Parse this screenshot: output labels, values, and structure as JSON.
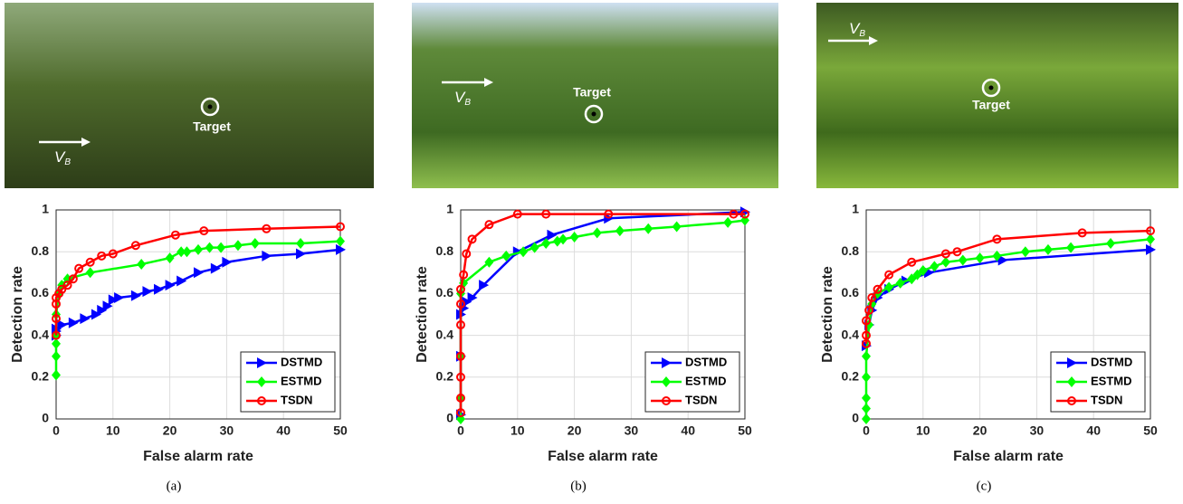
{
  "chart_data": [
    {
      "type": "line",
      "caption": "(a)",
      "photo": {
        "target_label": "Target",
        "velocity_label": "V",
        "velocity_subscript": "B"
      },
      "xlabel": "False alarm rate",
      "ylabel": "Detection rate",
      "xlim": [
        0,
        50
      ],
      "xticks": [
        0,
        10,
        20,
        30,
        40,
        50
      ],
      "ylim": [
        0,
        1
      ],
      "yticks": [
        0,
        0.2,
        0.4,
        0.6,
        0.8,
        1
      ],
      "grid": true,
      "legend": "lower right",
      "series": [
        {
          "name": "DSTMD",
          "color": "#0000ff",
          "marker": "triangle",
          "x": [
            0,
            0,
            0,
            1,
            3,
            5,
            7,
            8,
            9,
            10,
            11,
            14,
            16,
            18,
            20,
            22,
            25,
            28,
            30,
            37,
            43,
            50
          ],
          "values": [
            0.4,
            0.42,
            0.43,
            0.45,
            0.46,
            0.48,
            0.5,
            0.52,
            0.54,
            0.57,
            0.58,
            0.59,
            0.61,
            0.62,
            0.64,
            0.66,
            0.7,
            0.72,
            0.75,
            0.78,
            0.79,
            0.81
          ]
        },
        {
          "name": "ESTMD",
          "color": "#00ff00",
          "marker": "diamond",
          "x": [
            0,
            0,
            0,
            0,
            0,
            0.5,
            1,
            2,
            6,
            15,
            20,
            22,
            23,
            25,
            27,
            29,
            32,
            35,
            43,
            50
          ],
          "values": [
            0.21,
            0.3,
            0.36,
            0.4,
            0.5,
            0.6,
            0.64,
            0.67,
            0.7,
            0.74,
            0.77,
            0.8,
            0.8,
            0.81,
            0.82,
            0.82,
            0.83,
            0.84,
            0.84,
            0.85
          ]
        },
        {
          "name": "TSDN",
          "color": "#ff0000",
          "marker": "circle",
          "x": [
            0,
            0,
            0,
            0,
            0.5,
            1,
            2,
            3,
            4,
            6,
            8,
            10,
            14,
            21,
            26,
            37,
            50
          ],
          "values": [
            0.4,
            0.48,
            0.55,
            0.58,
            0.6,
            0.62,
            0.64,
            0.67,
            0.72,
            0.75,
            0.78,
            0.79,
            0.83,
            0.88,
            0.9,
            0.91,
            0.92
          ]
        }
      ]
    },
    {
      "type": "line",
      "caption": "(b)",
      "photo": {
        "target_label": "Target",
        "velocity_label": "V",
        "velocity_subscript": "B"
      },
      "xlabel": "False alarm rate",
      "ylabel": "Detection rate",
      "xlim": [
        0,
        50
      ],
      "xticks": [
        0,
        10,
        20,
        30,
        40,
        50
      ],
      "ylim": [
        0,
        1
      ],
      "yticks": [
        0,
        0.2,
        0.4,
        0.6,
        0.8,
        1
      ],
      "grid": true,
      "legend": "lower right",
      "series": [
        {
          "name": "DSTMD",
          "color": "#0000ff",
          "marker": "triangle",
          "x": [
            0,
            0,
            0,
            0.5,
            1,
            2,
            4,
            10,
            16,
            26,
            50
          ],
          "values": [
            0.02,
            0.3,
            0.5,
            0.53,
            0.56,
            0.58,
            0.64,
            0.8,
            0.88,
            0.96,
            0.99
          ]
        },
        {
          "name": "ESTMD",
          "color": "#00ff00",
          "marker": "diamond",
          "x": [
            0,
            0,
            0,
            0,
            0.5,
            5,
            8,
            11,
            13,
            15,
            17,
            18,
            20,
            24,
            28,
            33,
            38,
            47,
            50
          ],
          "values": [
            0,
            0.1,
            0.3,
            0.6,
            0.65,
            0.75,
            0.78,
            0.8,
            0.82,
            0.84,
            0.85,
            0.86,
            0.87,
            0.89,
            0.9,
            0.91,
            0.92,
            0.94,
            0.95
          ]
        },
        {
          "name": "TSDN",
          "color": "#ff0000",
          "marker": "circle",
          "x": [
            0,
            0,
            0,
            0,
            0,
            0,
            0,
            0.5,
            1,
            2,
            5,
            10,
            15,
            26,
            48,
            50
          ],
          "values": [
            0.03,
            0.1,
            0.2,
            0.3,
            0.45,
            0.55,
            0.62,
            0.69,
            0.79,
            0.86,
            0.93,
            0.98,
            0.98,
            0.98,
            0.98,
            0.98
          ]
        }
      ]
    },
    {
      "type": "line",
      "caption": "(c)",
      "photo": {
        "target_label": "Target",
        "velocity_label": "V",
        "velocity_subscript": "B"
      },
      "xlabel": "False alarm rate",
      "ylabel": "Detection rate",
      "xlim": [
        0,
        50
      ],
      "xticks": [
        0,
        10,
        20,
        30,
        40,
        50
      ],
      "ylim": [
        0,
        1
      ],
      "yticks": [
        0,
        0.2,
        0.4,
        0.6,
        0.8,
        1
      ],
      "grid": true,
      "legend": "lower right",
      "series": [
        {
          "name": "DSTMD",
          "color": "#0000ff",
          "marker": "triangle",
          "x": [
            0,
            0.5,
            1,
            2,
            4,
            7,
            11,
            24,
            50
          ],
          "values": [
            0.35,
            0.45,
            0.52,
            0.58,
            0.62,
            0.66,
            0.7,
            0.76,
            0.81
          ]
        },
        {
          "name": "ESTMD",
          "color": "#00ff00",
          "marker": "diamond",
          "x": [
            0,
            0,
            0,
            0,
            0,
            0.5,
            1,
            2,
            4,
            6,
            8,
            9,
            10,
            12,
            14,
            17,
            20,
            23,
            28,
            32,
            36,
            43,
            50
          ],
          "values": [
            0,
            0.05,
            0.1,
            0.2,
            0.3,
            0.45,
            0.55,
            0.6,
            0.63,
            0.65,
            0.67,
            0.69,
            0.71,
            0.73,
            0.75,
            0.76,
            0.77,
            0.78,
            0.8,
            0.81,
            0.82,
            0.84,
            0.86
          ]
        },
        {
          "name": "TSDN",
          "color": "#ff0000",
          "marker": "circle",
          "x": [
            0,
            0,
            0,
            0.5,
            1,
            2,
            4,
            8,
            14,
            16,
            23,
            38,
            50
          ],
          "values": [
            0.36,
            0.4,
            0.47,
            0.52,
            0.58,
            0.62,
            0.69,
            0.75,
            0.79,
            0.8,
            0.86,
            0.89,
            0.9
          ]
        }
      ]
    }
  ]
}
